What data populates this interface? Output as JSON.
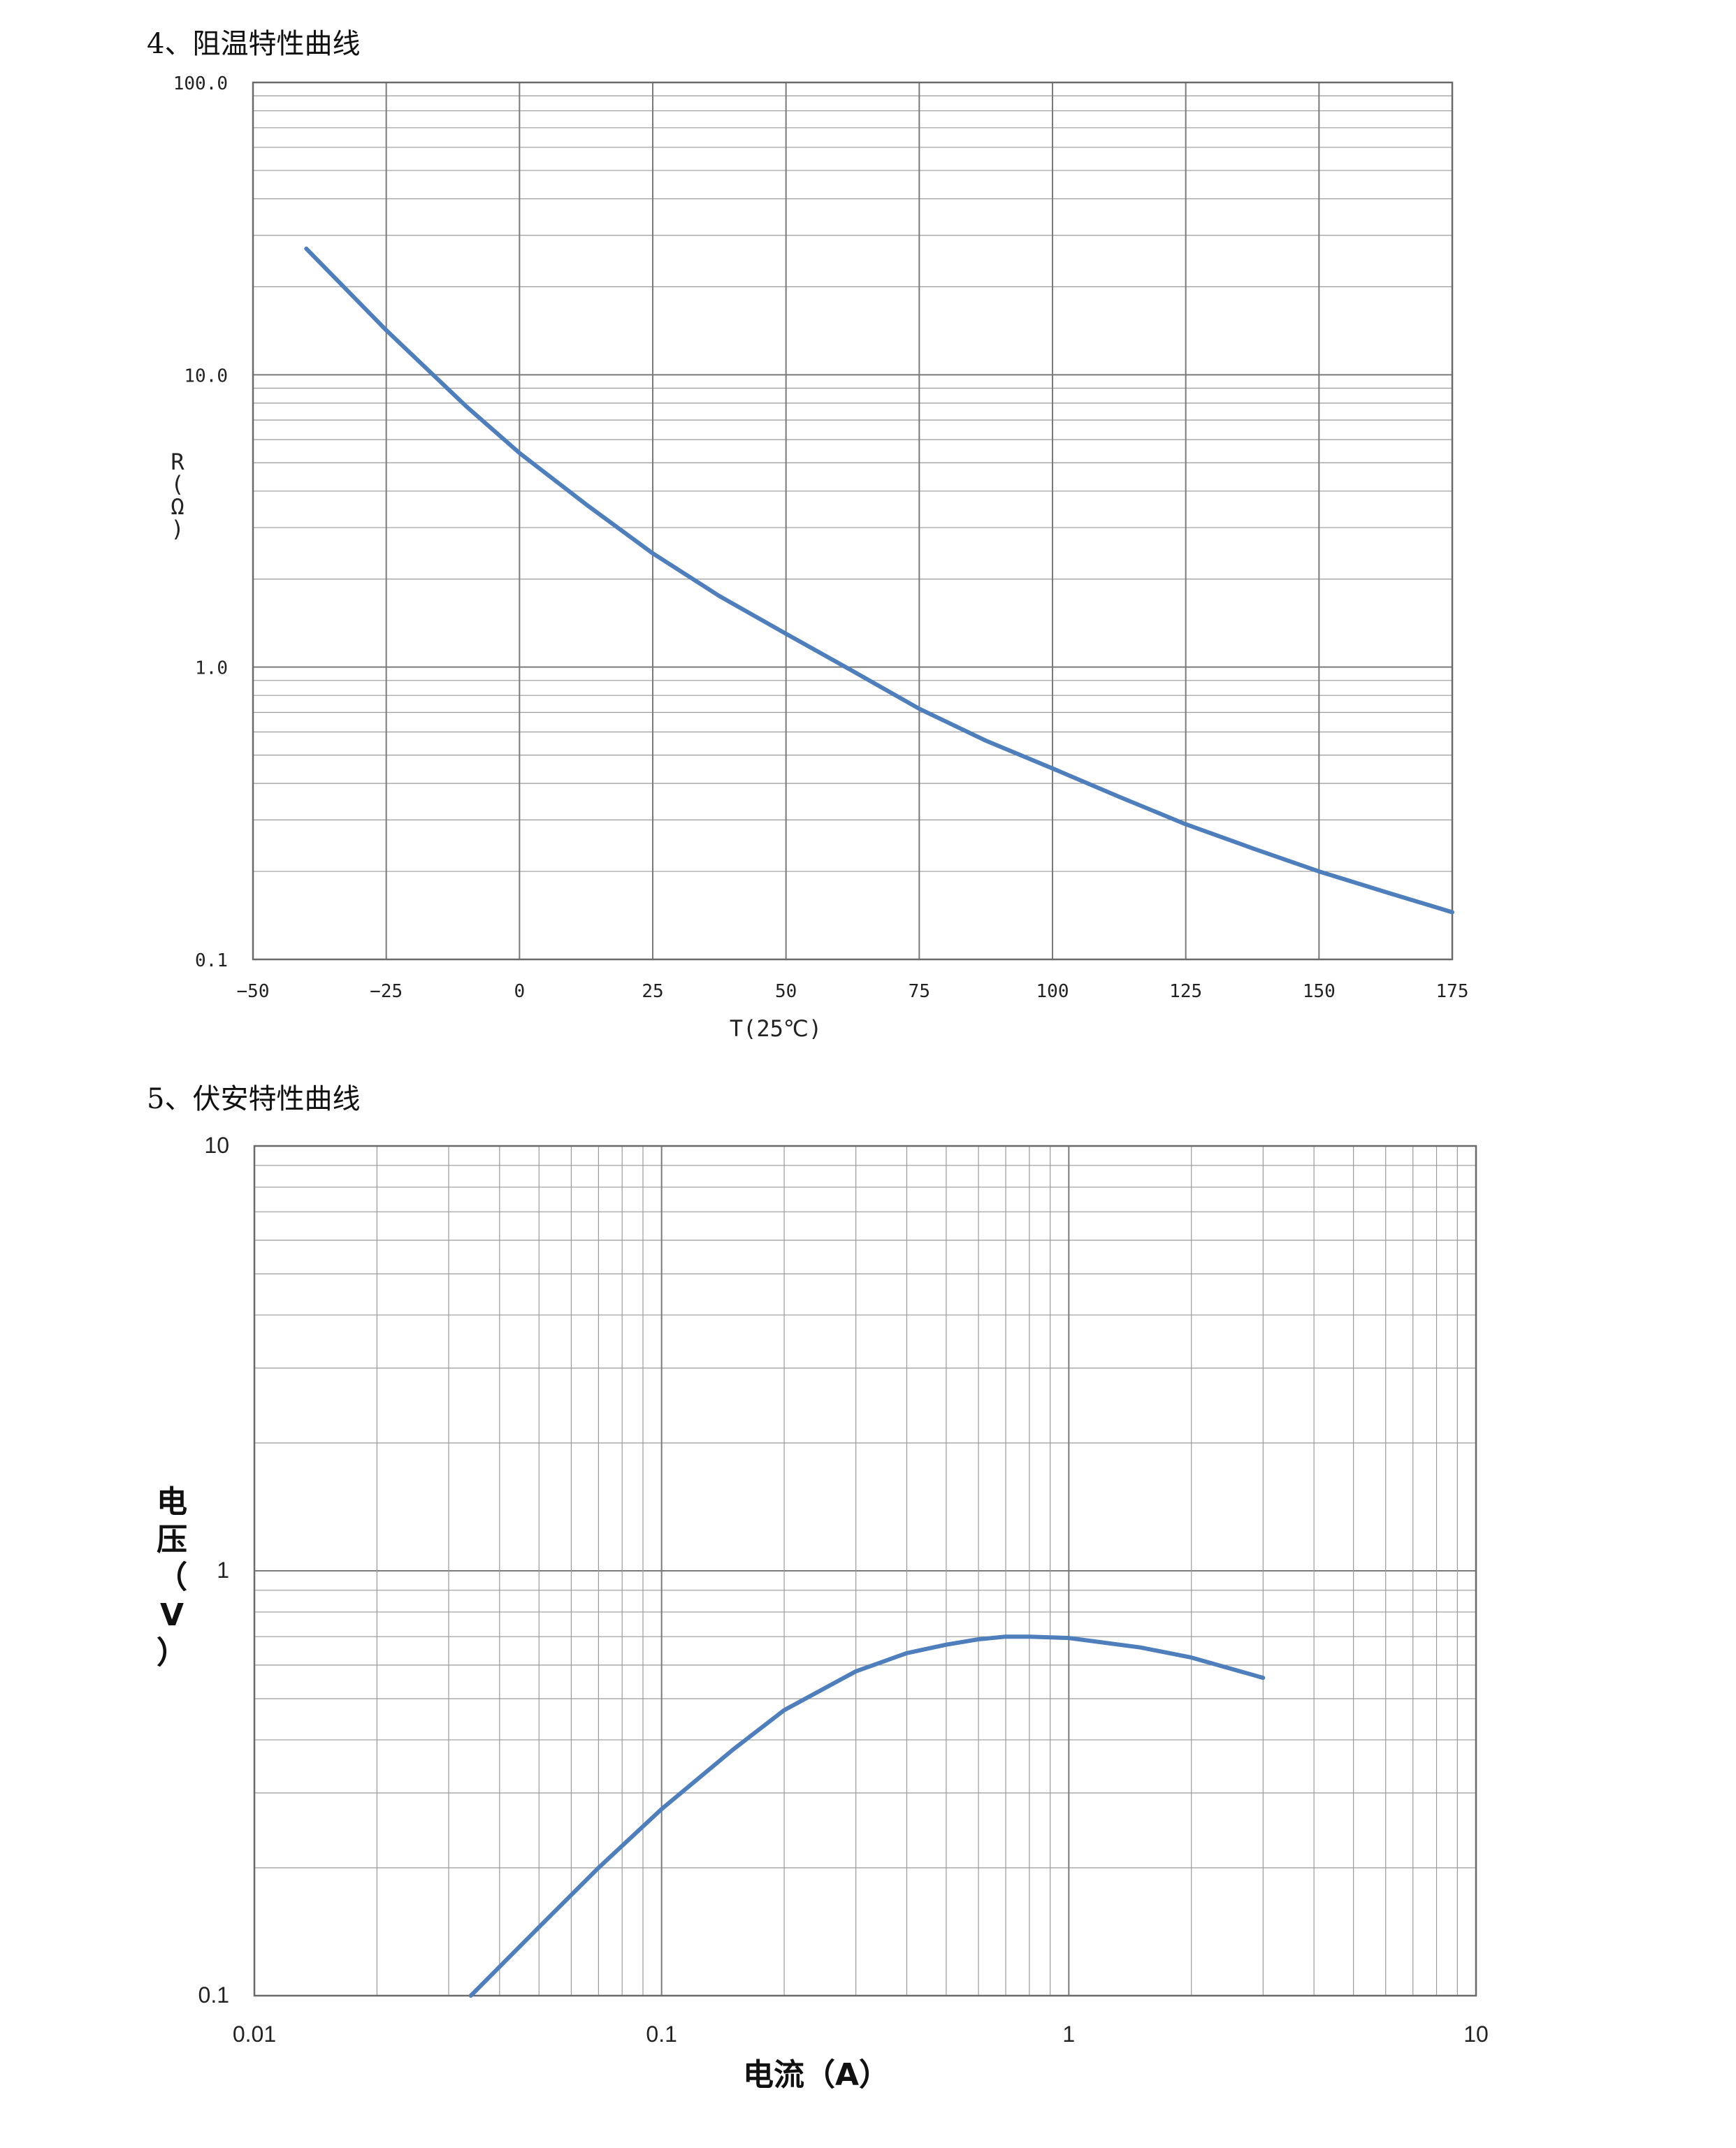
{
  "sections": [
    {
      "title": "4、阻温特性曲线"
    },
    {
      "title": "5、伏安特性曲线"
    }
  ],
  "chart_data": [
    {
      "type": "line",
      "scale": {
        "x": "linear",
        "y": "log"
      },
      "xlim": [
        -50,
        175
      ],
      "ylim": [
        0.1,
        100
      ],
      "x_ticks": [
        "−50",
        "−25",
        "0",
        "25",
        "50",
        "75",
        "100",
        "125",
        "150",
        "175"
      ],
      "x_tick_values": [
        -50,
        -25,
        0,
        25,
        50,
        75,
        100,
        125,
        150,
        175
      ],
      "y_ticks": [
        "100.0",
        "10.0",
        "1.0",
        "0.1"
      ],
      "y_tick_values": [
        100,
        10,
        1,
        0.1
      ],
      "xlabel": "T(25℃)",
      "ylabel_chars": [
        "R",
        "(",
        "Ω",
        ")"
      ],
      "grid": true,
      "line_color": "#4e7ebc",
      "x": [
        -40,
        -25,
        -10,
        0,
        12.5,
        25,
        37.5,
        50,
        62.5,
        75,
        87.5,
        100,
        112.5,
        125,
        137.5,
        150,
        162.5,
        175
      ],
      "y": [
        27,
        14.2,
        7.8,
        5.4,
        3.6,
        2.45,
        1.75,
        1.3,
        0.97,
        0.72,
        0.56,
        0.45,
        0.36,
        0.29,
        0.24,
        0.2,
        0.17,
        0.145
      ]
    },
    {
      "type": "line",
      "scale": {
        "x": "log",
        "y": "log"
      },
      "xlim": [
        0.01,
        10
      ],
      "ylim": [
        0.1,
        10
      ],
      "x_ticks": [
        "0.01",
        "0.1",
        "1",
        "10"
      ],
      "x_tick_values": [
        0.01,
        0.1,
        1,
        10
      ],
      "y_ticks": [
        "10",
        "1",
        "0.1"
      ],
      "y_tick_values": [
        10,
        1,
        0.1
      ],
      "xlabel": "电流（A）",
      "ylabel_chars": [
        "电",
        "压",
        "（",
        "V",
        "）"
      ],
      "grid": true,
      "line_color": "#4e7ebc",
      "x": [
        0.034,
        0.05,
        0.07,
        0.1,
        0.15,
        0.2,
        0.3,
        0.4,
        0.5,
        0.6,
        0.7,
        0.8,
        1.0,
        1.5,
        2.0,
        3.0
      ],
      "y": [
        0.1,
        0.145,
        0.2,
        0.275,
        0.38,
        0.47,
        0.58,
        0.64,
        0.67,
        0.69,
        0.7,
        0.7,
        0.695,
        0.66,
        0.625,
        0.56
      ]
    }
  ]
}
